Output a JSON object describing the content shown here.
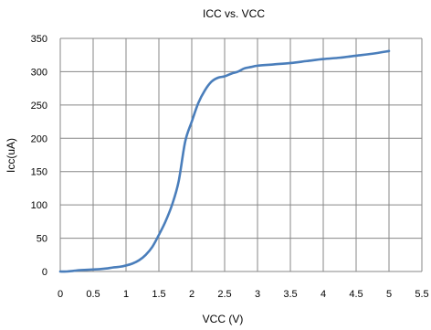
{
  "chart_data": {
    "type": "line",
    "title": "ICC  vs. VCC",
    "xlabel": "VCC (V)",
    "ylabel": "Icc(uA)",
    "xlim": [
      0,
      5.5
    ],
    "ylim": [
      0,
      350
    ],
    "x_ticks": [
      0,
      0.5,
      1,
      1.5,
      2,
      2.5,
      3,
      3.5,
      4,
      4.5,
      5,
      5.5
    ],
    "y_ticks": [
      0,
      50,
      100,
      150,
      200,
      250,
      300,
      350
    ],
    "x_tick_labels": [
      "0",
      "0.5",
      "1",
      "1.5",
      "2",
      "2.5",
      "3",
      "3.5",
      "4",
      "4.5",
      "5",
      "5.5"
    ],
    "y_tick_labels": [
      "0",
      "50",
      "100",
      "150",
      "200",
      "250",
      "300",
      "350"
    ],
    "grid": true,
    "legend": "none",
    "series": [
      {
        "color": "#4a7ebb",
        "x": [
          0,
          0.1,
          0.2,
          0.3,
          0.4,
          0.5,
          0.6,
          0.7,
          0.8,
          0.9,
          1.0,
          1.1,
          1.2,
          1.3,
          1.4,
          1.5,
          1.6,
          1.7,
          1.8,
          1.9,
          2.0,
          2.1,
          2.2,
          2.3,
          2.4,
          2.5,
          2.6,
          2.7,
          2.8,
          2.9,
          3.0,
          3.25,
          3.5,
          3.75,
          4.0,
          4.25,
          4.5,
          4.75,
          5.0
        ],
        "y": [
          0,
          0,
          1,
          2,
          2.5,
          3,
          3.5,
          4.5,
          6,
          7,
          9,
          12,
          17,
          25,
          37,
          55,
          75,
          100,
          135,
          195,
          225,
          253,
          272,
          285,
          291,
          293,
          297,
          300,
          305,
          307,
          309,
          311,
          313,
          316,
          319,
          321,
          324,
          327,
          331
        ]
      }
    ]
  }
}
